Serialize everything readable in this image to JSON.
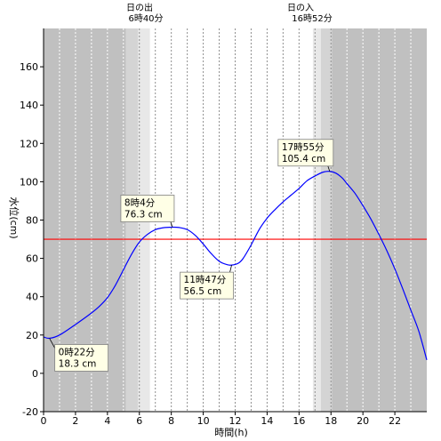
{
  "chart_data": {
    "type": "line",
    "xlabel": "時間(h)",
    "ylabel": "水位(cm)",
    "xlim": [
      0,
      24
    ],
    "ylim": [
      -20,
      180
    ],
    "x_ticks": [
      0,
      2,
      4,
      6,
      8,
      10,
      12,
      14,
      16,
      18,
      20,
      22
    ],
    "y_ticks": [
      -20,
      0,
      20,
      40,
      60,
      80,
      100,
      120,
      140,
      160
    ],
    "sunrise": {
      "label": "日の出",
      "time_label": "6時40分",
      "hour": 6.667
    },
    "sunset": {
      "label": "日の入",
      "time_label": "16時52分",
      "hour": 16.867
    },
    "reference_level": {
      "value": 70,
      "color": "#ff0000"
    },
    "series": [
      {
        "color": "#0000ff",
        "x": [
          0,
          0.37,
          1,
          2,
          3,
          3.5,
          4,
          4.5,
          5,
          5.5,
          6,
          6.5,
          7,
          7.5,
          8.07,
          8.5,
          9,
          9.5,
          10,
          10.5,
          11,
          11.5,
          11.78,
          12.2,
          12.5,
          13,
          13.5,
          14,
          14.5,
          15,
          15.5,
          16,
          16.5,
          17,
          17.5,
          17.92,
          18.3,
          18.7,
          19,
          19.5,
          20,
          20.5,
          21,
          21.5,
          22,
          22.5,
          23,
          23.5,
          24
        ],
        "y": [
          19,
          18.3,
          20,
          25.5,
          31.5,
          35,
          39.5,
          46,
          54,
          62,
          68.5,
          72.5,
          75,
          76,
          76.3,
          76.1,
          75,
          72,
          67.5,
          62.5,
          58.5,
          56.7,
          56.5,
          57.5,
          60,
          67,
          75,
          81,
          85.5,
          89.5,
          93,
          96.5,
          100.5,
          103,
          105,
          105.4,
          104.5,
          102,
          99,
          94,
          87.5,
          80.5,
          72.5,
          64,
          54.5,
          44,
          33,
          22,
          7
        ]
      }
    ],
    "annotations": [
      {
        "line1": "0時22分",
        "line2": "18.3 cm",
        "x": 0.37,
        "y": 18.3
      },
      {
        "line1": "8時4分",
        "line2": "76.3 cm",
        "x": 8.07,
        "y": 76.3
      },
      {
        "line1": "11時47分",
        "line2": "56.5 cm",
        "x": 11.78,
        "y": 56.5
      },
      {
        "line1": "17時55分",
        "line2": "105.4 cm",
        "x": 17.92,
        "y": 105.4
      }
    ],
    "colors": {
      "night": "#c0c0c0",
      "twilight_outer": "#d4d4d4",
      "twilight_inner": "#e8e8e8",
      "day": "#ffffff",
      "annotation_fill": "#ffffe6"
    }
  }
}
